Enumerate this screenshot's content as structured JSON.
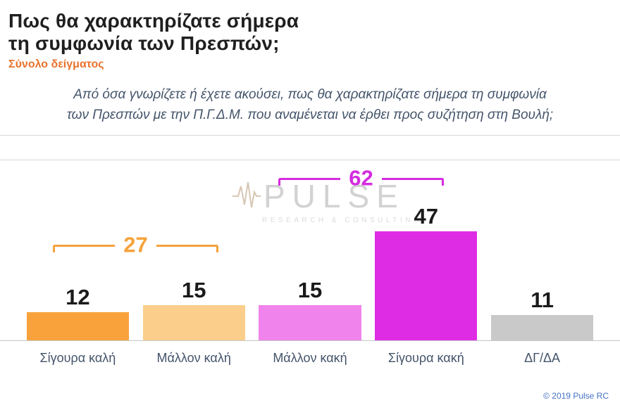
{
  "header": {
    "title_lines": [
      "Πως θα χαρακτηρίζατε σήμερα",
      "τη συμφωνία των Πρεσπών;"
    ],
    "subtitle": "Σύνολο δείγματος"
  },
  "question_lines": [
    "Από όσα γνωρίζετε ή έχετε ακούσει, πως θα χαρακτηρίζατε σήμερα τη συμφωνία",
    "των Πρεσπών με την Π.Γ.Δ.Μ. που αναμένεται να έρθει προς συζήτηση στη Βουλή;"
  ],
  "watermark": {
    "brand": "PULSE",
    "tagline": "RESEARCH & CONSULTING"
  },
  "footer": {
    "copyright": "© 2019 Pulse RC"
  },
  "chart_data": {
    "type": "bar",
    "title": "Πως θα χαρακτηρίζατε σήμερα τη συμφωνία των Πρεσπών;",
    "subtitle": "Σύνολο δείγματος",
    "categories": [
      "Σίγουρα καλή",
      "Μάλλον καλή",
      "Μάλλον κακή",
      "Σίγουρα κακή",
      "ΔΓ/ΔΑ"
    ],
    "values": [
      12,
      15,
      15,
      47,
      11
    ],
    "bar_colors": [
      "#F9A23C",
      "#FBCF8B",
      "#F083EC",
      "#DE2CE5",
      "#C9C9C9"
    ],
    "value_label_color": "#1a1a1a",
    "category_label_color": "#44546A",
    "annotations": [
      {
        "label": "27",
        "value": 27,
        "covers": [
          "Σίγουρα καλή",
          "Μάλλον καλή"
        ],
        "color": "#F5A33C"
      },
      {
        "label": "62",
        "value": 62,
        "covers": [
          "Μάλλον κακή",
          "Σίγουρα κακή"
        ],
        "color": "#D62BE0"
      }
    ],
    "ylim": [
      0,
      78
    ],
    "grid": false,
    "legend": false
  }
}
